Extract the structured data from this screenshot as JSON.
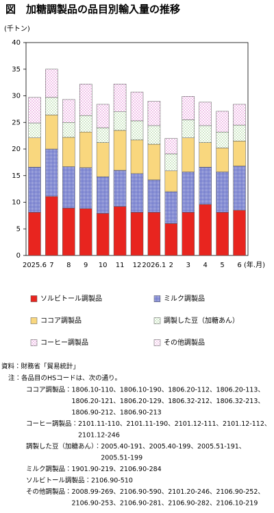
{
  "chart_data": {
    "type": "stacked_bar",
    "title": "図　加糖調製品の品目別輸入量の推移",
    "y_label": "(千トン)",
    "x_label": "(年.月)",
    "categories": [
      "2025.6",
      "7",
      "8",
      "9",
      "10",
      "11",
      "12",
      "2026.1",
      "2",
      "3",
      "4",
      "5",
      "6"
    ],
    "series": [
      {
        "name": "ソルビトール調製品",
        "color": "#e8251f",
        "pattern": "solid",
        "values": [
          8.1,
          11.1,
          8.9,
          8.8,
          7.9,
          9.2,
          8.1,
          8.1,
          6.0,
          8.1,
          9.6,
          8.1,
          8.5
        ]
      },
      {
        "name": "ミルク調製品",
        "color": "#6670c8",
        "pattern": "grid",
        "values": [
          8.5,
          8.9,
          7.8,
          7.7,
          6.9,
          6.8,
          7.3,
          6.1,
          6.0,
          7.6,
          7.0,
          7.6,
          8.3
        ]
      },
      {
        "name": "ココア調製品",
        "color": "#f9d77e",
        "pattern": "solid",
        "values": [
          5.5,
          6.4,
          5.5,
          6.7,
          6.4,
          7.5,
          6.3,
          6.7,
          3.9,
          6.4,
          4.6,
          4.5,
          4.7
        ]
      },
      {
        "name": "調製した豆（加糖あん）",
        "color": "#9ccf8a",
        "pattern": "dots",
        "values": [
          2.8,
          3.3,
          2.8,
          3.1,
          2.8,
          3.5,
          3.6,
          3.5,
          3.2,
          3.4,
          3.2,
          3.0,
          3.0
        ]
      },
      {
        "name": "コーヒー調製品",
        "color": "#e07ad0",
        "pattern": "dots",
        "values": [
          4.8,
          5.3,
          4.3,
          5.9,
          4.4,
          5.2,
          5.4,
          4.6,
          2.9,
          4.4,
          4.4,
          3.9,
          3.9
        ]
      },
      {
        "name": "その他調製品",
        "color": "#e89bd9",
        "pattern": "dots",
        "values": [
          0,
          0,
          0,
          0,
          0,
          0,
          0,
          0,
          0,
          0,
          0,
          0,
          0
        ]
      }
    ],
    "ylim": [
      0,
      40
    ],
    "yticks": [
      0,
      5,
      10,
      15,
      20,
      25,
      30,
      35,
      40
    ]
  },
  "notes": {
    "source": "資料：財務省「貿易統計」",
    "note": "注：各品目のHSコードは、次の通り。",
    "items": [
      {
        "label": "ココア調製品：",
        "lines": [
          "1806.10-110、1806.10-190、1806.20-112、1806.20-113、",
          "1806.20-121、1806.20-129、1806.32-212、1806.32-213、",
          "1806.90-212、1806.90-213"
        ]
      },
      {
        "label": "コーヒー調製品：",
        "lines": [
          "2101.11-110、2101.11-190、2101.12-111、2101.12-112、",
          "2101.12-246"
        ]
      },
      {
        "label": "調製した豆（加糖あん）：",
        "lines": [
          "2005.40-191、2005.40-199、2005.51-191、",
          "2005.51-199"
        ]
      },
      {
        "label": "ミルク調製品：",
        "lines": [
          "1901.90-219、2106.90-284"
        ]
      },
      {
        "label": "ソルビトール調製品：",
        "lines": [
          "2106.90-510"
        ]
      },
      {
        "label": "その他調製品：",
        "lines": [
          "2008.99-269、2106.90-590、2101.20-246、2106.90-252、",
          "2106.90-253、2106.90-281、2106.90-282、2106.10-219"
        ]
      }
    ]
  }
}
